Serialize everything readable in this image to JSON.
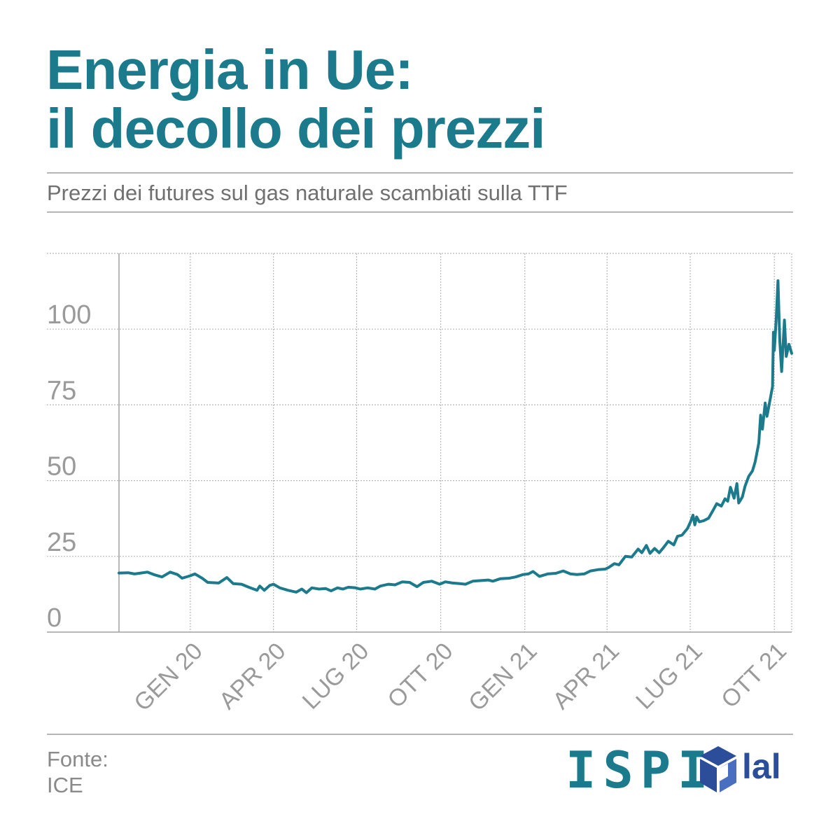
{
  "title": {
    "line1": "Energia in Ue:",
    "line2": "il decollo dei prezzi"
  },
  "subtitle": "Prezzi dei futures sul gas naturale scambiati sulla TTF",
  "source": {
    "label": "Fonte:",
    "name": "ICE"
  },
  "logos": {
    "ispi": "ISPI",
    "iai": "IAI",
    "iai_text": "IAI"
  },
  "colors": {
    "accent": "#1b7a8c",
    "line": "#1b7a8c",
    "grid": "#b8b8b8",
    "tick_text": "#9a9a9a",
    "iai": "#2b4d9a"
  },
  "chart_data": {
    "type": "line",
    "title": "",
    "xlabel": "",
    "ylabel": "",
    "x_ticks": [
      "GEN 20",
      "APR 20",
      "LUG 20",
      "OTT 20",
      "GEN 21",
      "APR 21",
      "LUG 21",
      "OTT 21"
    ],
    "x_tick_dates": [
      "2020-01-01",
      "2020-04-01",
      "2020-07-01",
      "2020-10-01",
      "2021-01-01",
      "2021-04-01",
      "2021-07-01",
      "2021-10-01"
    ],
    "y_ticks": [
      0,
      25,
      50,
      75,
      100
    ],
    "ylim": [
      0,
      125
    ],
    "xlim": [
      "2019-10-15",
      "2021-10-20"
    ],
    "grid": true,
    "series": [
      {
        "points": [
          [
            "2019-10-15",
            19.5
          ],
          [
            "2019-10-25",
            19.6
          ],
          [
            "2019-11-01",
            19.2
          ],
          [
            "2019-11-08",
            19.5
          ],
          [
            "2019-11-15",
            19.8
          ],
          [
            "2019-11-22",
            19.0
          ],
          [
            "2019-12-01",
            18.2
          ],
          [
            "2019-12-10",
            19.8
          ],
          [
            "2019-12-18",
            19.0
          ],
          [
            "2019-12-23",
            17.8
          ],
          [
            "2020-01-01",
            18.6
          ],
          [
            "2020-01-06",
            19.2
          ],
          [
            "2020-01-14",
            17.8
          ],
          [
            "2020-01-20",
            16.4
          ],
          [
            "2020-02-01",
            16.2
          ],
          [
            "2020-02-10",
            18.0
          ],
          [
            "2020-02-17",
            16.0
          ],
          [
            "2020-02-26",
            15.8
          ],
          [
            "2020-03-05",
            14.8
          ],
          [
            "2020-03-14",
            13.8
          ],
          [
            "2020-03-17",
            15.2
          ],
          [
            "2020-03-22",
            13.8
          ],
          [
            "2020-03-28",
            15.4
          ],
          [
            "2020-04-01",
            15.8
          ],
          [
            "2020-04-08",
            14.6
          ],
          [
            "2020-04-17",
            13.8
          ],
          [
            "2020-04-26",
            13.2
          ],
          [
            "2020-05-02",
            14.2
          ],
          [
            "2020-05-07",
            13.0
          ],
          [
            "2020-05-13",
            14.6
          ],
          [
            "2020-05-21",
            14.2
          ],
          [
            "2020-05-28",
            14.4
          ],
          [
            "2020-06-03",
            13.6
          ],
          [
            "2020-06-10",
            14.6
          ],
          [
            "2020-06-16",
            14.2
          ],
          [
            "2020-06-22",
            14.8
          ],
          [
            "2020-06-30",
            14.6
          ],
          [
            "2020-07-05",
            14.2
          ],
          [
            "2020-07-13",
            14.6
          ],
          [
            "2020-07-21",
            14.2
          ],
          [
            "2020-07-27",
            15.2
          ],
          [
            "2020-08-05",
            15.8
          ],
          [
            "2020-08-12",
            15.6
          ],
          [
            "2020-08-20",
            16.6
          ],
          [
            "2020-08-28",
            16.4
          ],
          [
            "2020-09-05",
            15.0
          ],
          [
            "2020-09-12",
            16.4
          ],
          [
            "2020-09-21",
            16.8
          ],
          [
            "2020-09-30",
            15.8
          ],
          [
            "2020-10-06",
            16.6
          ],
          [
            "2020-10-14",
            16.2
          ],
          [
            "2020-10-22",
            16.0
          ],
          [
            "2020-10-28",
            15.8
          ],
          [
            "2020-11-05",
            16.8
          ],
          [
            "2020-11-14",
            17.0
          ],
          [
            "2020-11-22",
            17.2
          ],
          [
            "2020-11-27",
            16.8
          ],
          [
            "2020-12-05",
            17.6
          ],
          [
            "2020-12-15",
            17.8
          ],
          [
            "2020-12-22",
            18.2
          ],
          [
            "2020-12-30",
            19.0
          ],
          [
            "2021-01-05",
            19.2
          ],
          [
            "2021-01-10",
            20.0
          ],
          [
            "2021-01-17",
            18.4
          ],
          [
            "2021-01-26",
            19.2
          ],
          [
            "2021-02-04",
            19.4
          ],
          [
            "2021-02-12",
            20.2
          ],
          [
            "2021-02-20",
            19.2
          ],
          [
            "2021-02-27",
            19.0
          ],
          [
            "2021-03-07",
            19.2
          ],
          [
            "2021-03-14",
            20.2
          ],
          [
            "2021-03-22",
            20.6
          ],
          [
            "2021-03-30",
            20.8
          ],
          [
            "2021-04-03",
            21.4
          ],
          [
            "2021-04-09",
            22.6
          ],
          [
            "2021-04-14",
            22.2
          ],
          [
            "2021-04-21",
            25.0
          ],
          [
            "2021-04-28",
            24.8
          ],
          [
            "2021-05-05",
            27.4
          ],
          [
            "2021-05-09",
            26.2
          ],
          [
            "2021-05-14",
            28.6
          ],
          [
            "2021-05-18",
            26.0
          ],
          [
            "2021-05-23",
            27.6
          ],
          [
            "2021-05-28",
            26.2
          ],
          [
            "2021-06-02",
            28.0
          ],
          [
            "2021-06-07",
            30.0
          ],
          [
            "2021-06-13",
            28.8
          ],
          [
            "2021-06-17",
            31.6
          ],
          [
            "2021-06-22",
            32.0
          ],
          [
            "2021-06-28",
            34.2
          ],
          [
            "2021-07-01",
            36.2
          ],
          [
            "2021-07-04",
            38.6
          ],
          [
            "2021-07-06",
            35.4
          ],
          [
            "2021-07-08",
            38.0
          ],
          [
            "2021-07-11",
            36.4
          ],
          [
            "2021-07-16",
            36.8
          ],
          [
            "2021-07-21",
            37.6
          ],
          [
            "2021-07-26",
            40.2
          ],
          [
            "2021-07-30",
            42.4
          ],
          [
            "2021-08-04",
            41.6
          ],
          [
            "2021-08-08",
            44.0
          ],
          [
            "2021-08-11",
            43.2
          ],
          [
            "2021-08-14",
            47.8
          ],
          [
            "2021-08-18",
            44.2
          ],
          [
            "2021-08-21",
            49.0
          ],
          [
            "2021-08-23",
            42.6
          ],
          [
            "2021-08-27",
            44.6
          ],
          [
            "2021-08-30",
            48.2
          ],
          [
            "2021-09-03",
            51.4
          ],
          [
            "2021-09-07",
            53.2
          ],
          [
            "2021-09-10",
            56.2
          ],
          [
            "2021-09-14",
            62.4
          ],
          [
            "2021-09-16",
            71.6
          ],
          [
            "2021-09-18",
            67.0
          ],
          [
            "2021-09-21",
            75.6
          ],
          [
            "2021-09-23",
            71.2
          ],
          [
            "2021-09-26",
            76.2
          ],
          [
            "2021-09-29",
            81.0
          ],
          [
            "2021-09-30",
            99.0
          ],
          [
            "2021-10-01",
            93.0
          ],
          [
            "2021-10-03",
            103.0
          ],
          [
            "2021-10-05",
            116.0
          ],
          [
            "2021-10-07",
            96.0
          ],
          [
            "2021-10-09",
            86.0
          ],
          [
            "2021-10-12",
            103.0
          ],
          [
            "2021-10-14",
            91.0
          ],
          [
            "2021-10-17",
            95.0
          ],
          [
            "2021-10-20",
            92.0
          ]
        ]
      }
    ]
  }
}
